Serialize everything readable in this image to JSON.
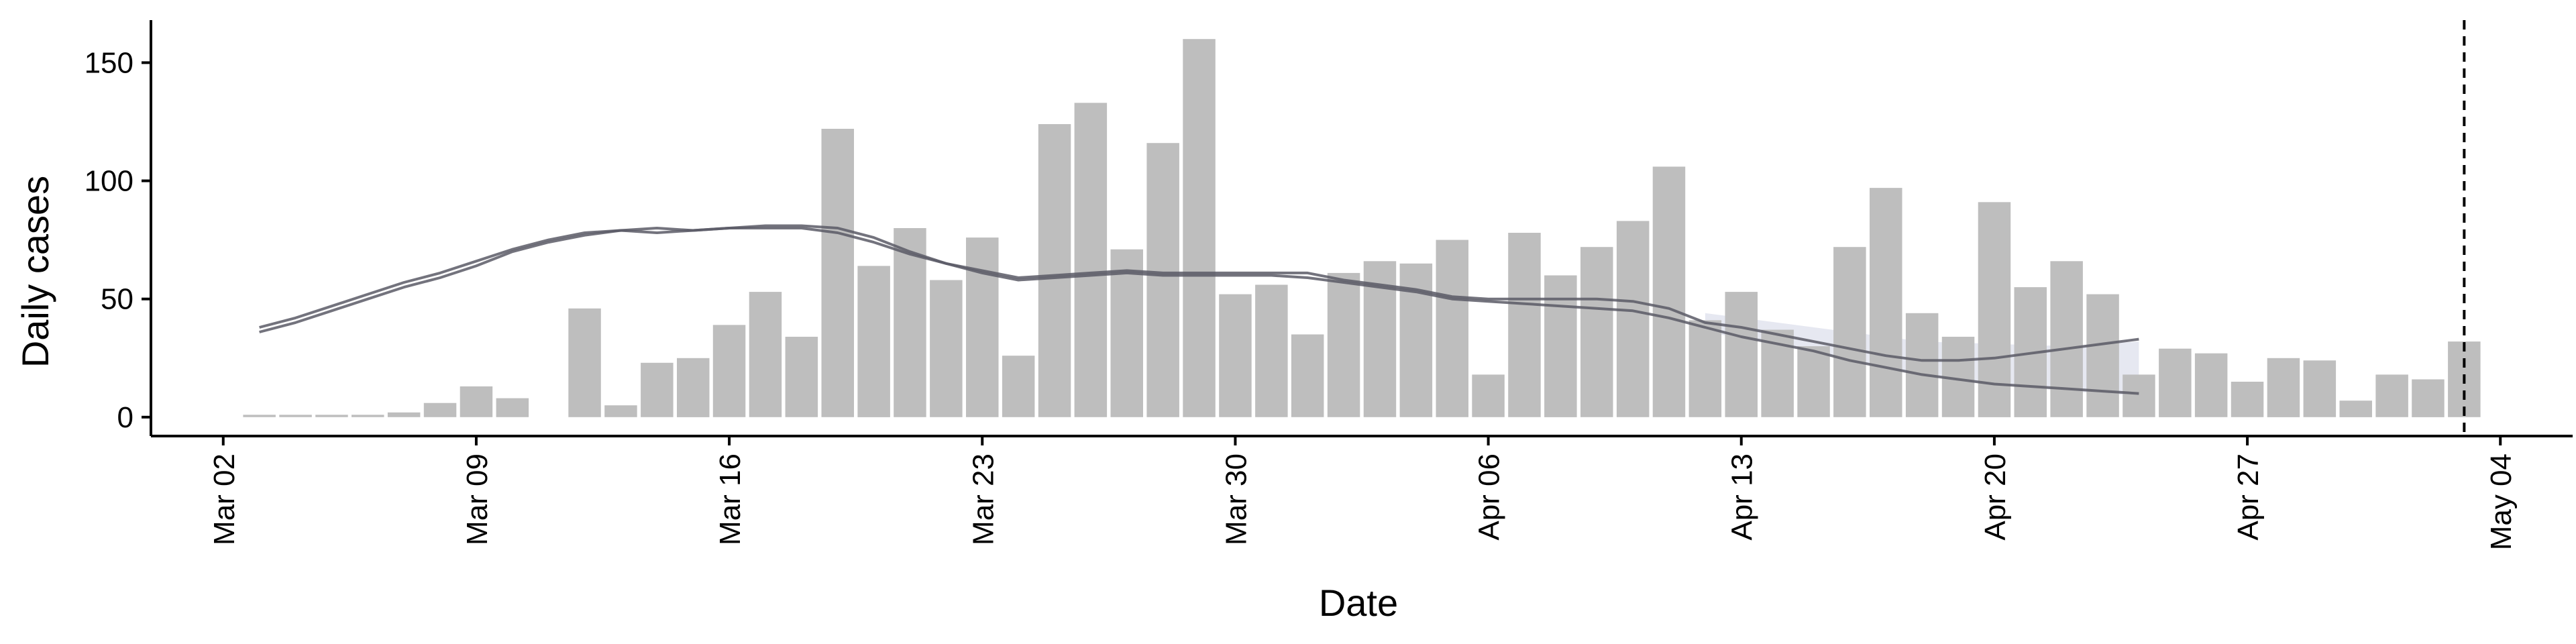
{
  "chart_data": {
    "type": "bar",
    "title": "",
    "xlabel": "Date",
    "ylabel": "Daily cases",
    "ylim": [
      -8,
      168
    ],
    "xlim": [
      "2020-02-29",
      "2020-05-06"
    ],
    "yticks": [
      0,
      50,
      100,
      150
    ],
    "ytick_labels": [
      "0",
      "50",
      "100",
      "150"
    ],
    "xticks": [
      "2020-03-02",
      "2020-03-09",
      "2020-03-16",
      "2020-03-23",
      "2020-03-30",
      "2020-04-06",
      "2020-04-13",
      "2020-04-20",
      "2020-04-27",
      "2020-05-04"
    ],
    "xtick_labels": [
      "Mar 02",
      "Mar 09",
      "Mar 16",
      "Mar 23",
      "Mar 30",
      "Apr 06",
      "Apr 13",
      "Apr 20",
      "Apr 27",
      "May 04"
    ],
    "grid": false,
    "bar_color": "#bebebe",
    "bars": {
      "dates": [
        "2020-03-03",
        "2020-03-04",
        "2020-03-05",
        "2020-03-06",
        "2020-03-07",
        "2020-03-08",
        "2020-03-09",
        "2020-03-10",
        "2020-03-11",
        "2020-03-12",
        "2020-03-13",
        "2020-03-14",
        "2020-03-15",
        "2020-03-16",
        "2020-03-17",
        "2020-03-18",
        "2020-03-19",
        "2020-03-20",
        "2020-03-21",
        "2020-03-22",
        "2020-03-23",
        "2020-03-24",
        "2020-03-25",
        "2020-03-26",
        "2020-03-27",
        "2020-03-28",
        "2020-03-29",
        "2020-03-30",
        "2020-03-31",
        "2020-04-01",
        "2020-04-02",
        "2020-04-03",
        "2020-04-04",
        "2020-04-05",
        "2020-04-06",
        "2020-04-07",
        "2020-04-08",
        "2020-04-09",
        "2020-04-10",
        "2020-04-11",
        "2020-04-12",
        "2020-04-13",
        "2020-04-14",
        "2020-04-15",
        "2020-04-16",
        "2020-04-17",
        "2020-04-18",
        "2020-04-19",
        "2020-04-20",
        "2020-04-21",
        "2020-04-22",
        "2020-04-23",
        "2020-04-24",
        "2020-04-25",
        "2020-04-26",
        "2020-04-27",
        "2020-04-28",
        "2020-04-29",
        "2020-04-30",
        "2020-05-01",
        "2020-05-02",
        "2020-05-03"
      ],
      "values": [
        1,
        1,
        1,
        1,
        2,
        6,
        13,
        8,
        0,
        46,
        5,
        23,
        25,
        39,
        53,
        34,
        122,
        64,
        80,
        58,
        76,
        26,
        124,
        133,
        71,
        116,
        160,
        52,
        56,
        35,
        61,
        66,
        65,
        75,
        18,
        78,
        60,
        72,
        83,
        106,
        41,
        53,
        37,
        30,
        72,
        97,
        44,
        34,
        91,
        55,
        66,
        52,
        18,
        29,
        27,
        15,
        25,
        24,
        7,
        18,
        16,
        32
      ]
    },
    "series": [
      {
        "dates": [
          "2020-03-03",
          "2020-03-04",
          "2020-03-05",
          "2020-03-06",
          "2020-03-07",
          "2020-03-08",
          "2020-03-09",
          "2020-03-10",
          "2020-03-11",
          "2020-03-12",
          "2020-03-13",
          "2020-03-14",
          "2020-03-15",
          "2020-03-16",
          "2020-03-17",
          "2020-03-18",
          "2020-03-19",
          "2020-03-20",
          "2020-03-21",
          "2020-03-22",
          "2020-03-23",
          "2020-03-24",
          "2020-03-25",
          "2020-03-26",
          "2020-03-27",
          "2020-03-28",
          "2020-03-29",
          "2020-03-30",
          "2020-03-31",
          "2020-04-01",
          "2020-04-02",
          "2020-04-03",
          "2020-04-04",
          "2020-04-05",
          "2020-04-06",
          "2020-04-07",
          "2020-04-08",
          "2020-04-09",
          "2020-04-10",
          "2020-04-11",
          "2020-04-12",
          "2020-04-13",
          "2020-04-14",
          "2020-04-15",
          "2020-04-16",
          "2020-04-17",
          "2020-04-18",
          "2020-04-19",
          "2020-04-20",
          "2020-04-21",
          "2020-04-22",
          "2020-04-23",
          "2020-04-24"
        ],
        "values": [
          38,
          42,
          47,
          52,
          57,
          61,
          66,
          71,
          75,
          78,
          79,
          78,
          79,
          80,
          81,
          81,
          80,
          76,
          70,
          65,
          62,
          59,
          60,
          61,
          62,
          61,
          61,
          61,
          61,
          61,
          58,
          56,
          54,
          51,
          50,
          50,
          50,
          50,
          49,
          46,
          40,
          38,
          35,
          32,
          29,
          26,
          24,
          24,
          25,
          27,
          29,
          31,
          33
        ],
        "color": "#5a5a66"
      },
      {
        "dates": [
          "2020-03-03",
          "2020-03-04",
          "2020-03-05",
          "2020-03-06",
          "2020-03-07",
          "2020-03-08",
          "2020-03-09",
          "2020-03-10",
          "2020-03-11",
          "2020-03-12",
          "2020-03-13",
          "2020-03-14",
          "2020-03-15",
          "2020-03-16",
          "2020-03-17",
          "2020-03-18",
          "2020-03-19",
          "2020-03-20",
          "2020-03-21",
          "2020-03-22",
          "2020-03-23",
          "2020-03-24",
          "2020-03-25",
          "2020-03-26",
          "2020-03-27",
          "2020-03-28",
          "2020-03-29",
          "2020-03-30",
          "2020-03-31",
          "2020-04-01",
          "2020-04-02",
          "2020-04-03",
          "2020-04-04",
          "2020-04-05",
          "2020-04-06",
          "2020-04-07",
          "2020-04-08",
          "2020-04-09",
          "2020-04-10",
          "2020-04-11",
          "2020-04-12",
          "2020-04-13",
          "2020-04-14",
          "2020-04-15",
          "2020-04-16",
          "2020-04-17",
          "2020-04-18",
          "2020-04-19",
          "2020-04-20",
          "2020-04-21",
          "2020-04-22",
          "2020-04-23",
          "2020-04-24"
        ],
        "values": [
          36,
          40,
          45,
          50,
          55,
          59,
          64,
          70,
          74,
          77,
          79,
          80,
          79,
          80,
          80,
          80,
          78,
          74,
          69,
          65,
          61,
          58,
          59,
          60,
          61,
          60,
          60,
          60,
          60,
          59,
          57,
          55,
          53,
          50,
          49,
          48,
          47,
          46,
          45,
          42,
          38,
          34,
          31,
          28,
          24,
          21,
          18,
          16,
          14,
          13,
          12,
          11,
          10
        ],
        "color": "#5a5a66"
      }
    ],
    "band": {
      "dates": [
        "2020-04-12",
        "2020-04-14",
        "2020-04-16",
        "2020-04-18",
        "2020-04-20",
        "2020-04-22",
        "2020-04-24"
      ],
      "upper": [
        44,
        40,
        36,
        32,
        31,
        30,
        32
      ],
      "lower": [
        36,
        31,
        24,
        18,
        14,
        11,
        9
      ],
      "color": "#c8cbe0"
    },
    "vline_date": "2020-05-03"
  }
}
